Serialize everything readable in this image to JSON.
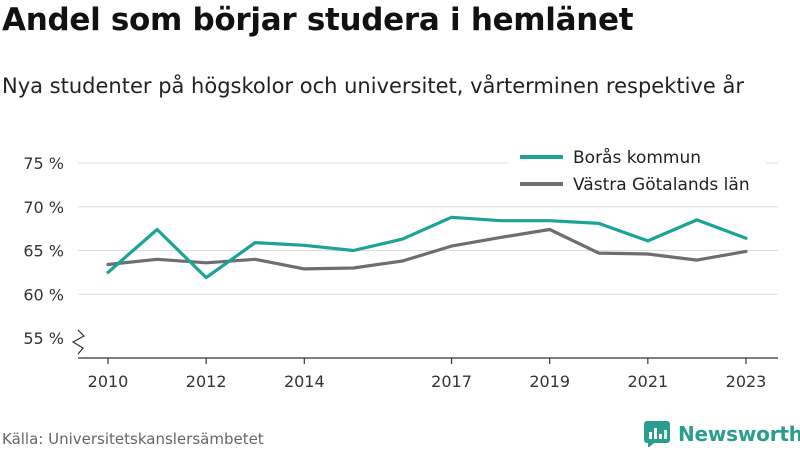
{
  "header": {
    "title": "Andel som börjar studera i hemlänet",
    "subtitle": "Nya studenter på högskolor och universitet, vårterminen respektive år"
  },
  "footer": {
    "source": "Källa: Universitetskanslersämbetet",
    "brand": "Newsworthy"
  },
  "chart_data": {
    "type": "line",
    "title": "Andel som börjar studera i hemlänet",
    "subtitle": "Nya studenter på högskolor och universitet, vårterminen respektive år",
    "x": [
      2010,
      2011,
      2012,
      2013,
      2014,
      2015,
      2016,
      2017,
      2018,
      2019,
      2020,
      2021,
      2022,
      2023
    ],
    "x_tick_labels": [
      "2010",
      "2012",
      "2014",
      "2017",
      "2019",
      "2021",
      "2023"
    ],
    "y_tick_labels": [
      "55 %",
      "60 %",
      "65 %",
      "70 %",
      "75 %"
    ],
    "ylim": [
      55,
      75
    ],
    "grid": true,
    "axis_break": true,
    "legend_position": "top-right",
    "series": [
      {
        "name": "Borås kommun",
        "color": "#1aa396",
        "values": [
          62.5,
          67.4,
          61.9,
          65.9,
          65.6,
          65.0,
          66.3,
          68.8,
          68.4,
          68.4,
          68.1,
          66.1,
          68.5,
          66.4
        ]
      },
      {
        "name": "Västra Götalands län",
        "color": "#6d6d72",
        "values": [
          63.4,
          64.0,
          63.6,
          64.0,
          62.9,
          63.0,
          63.8,
          65.5,
          66.5,
          67.4,
          64.7,
          64.6,
          63.9,
          64.9
        ]
      }
    ]
  }
}
